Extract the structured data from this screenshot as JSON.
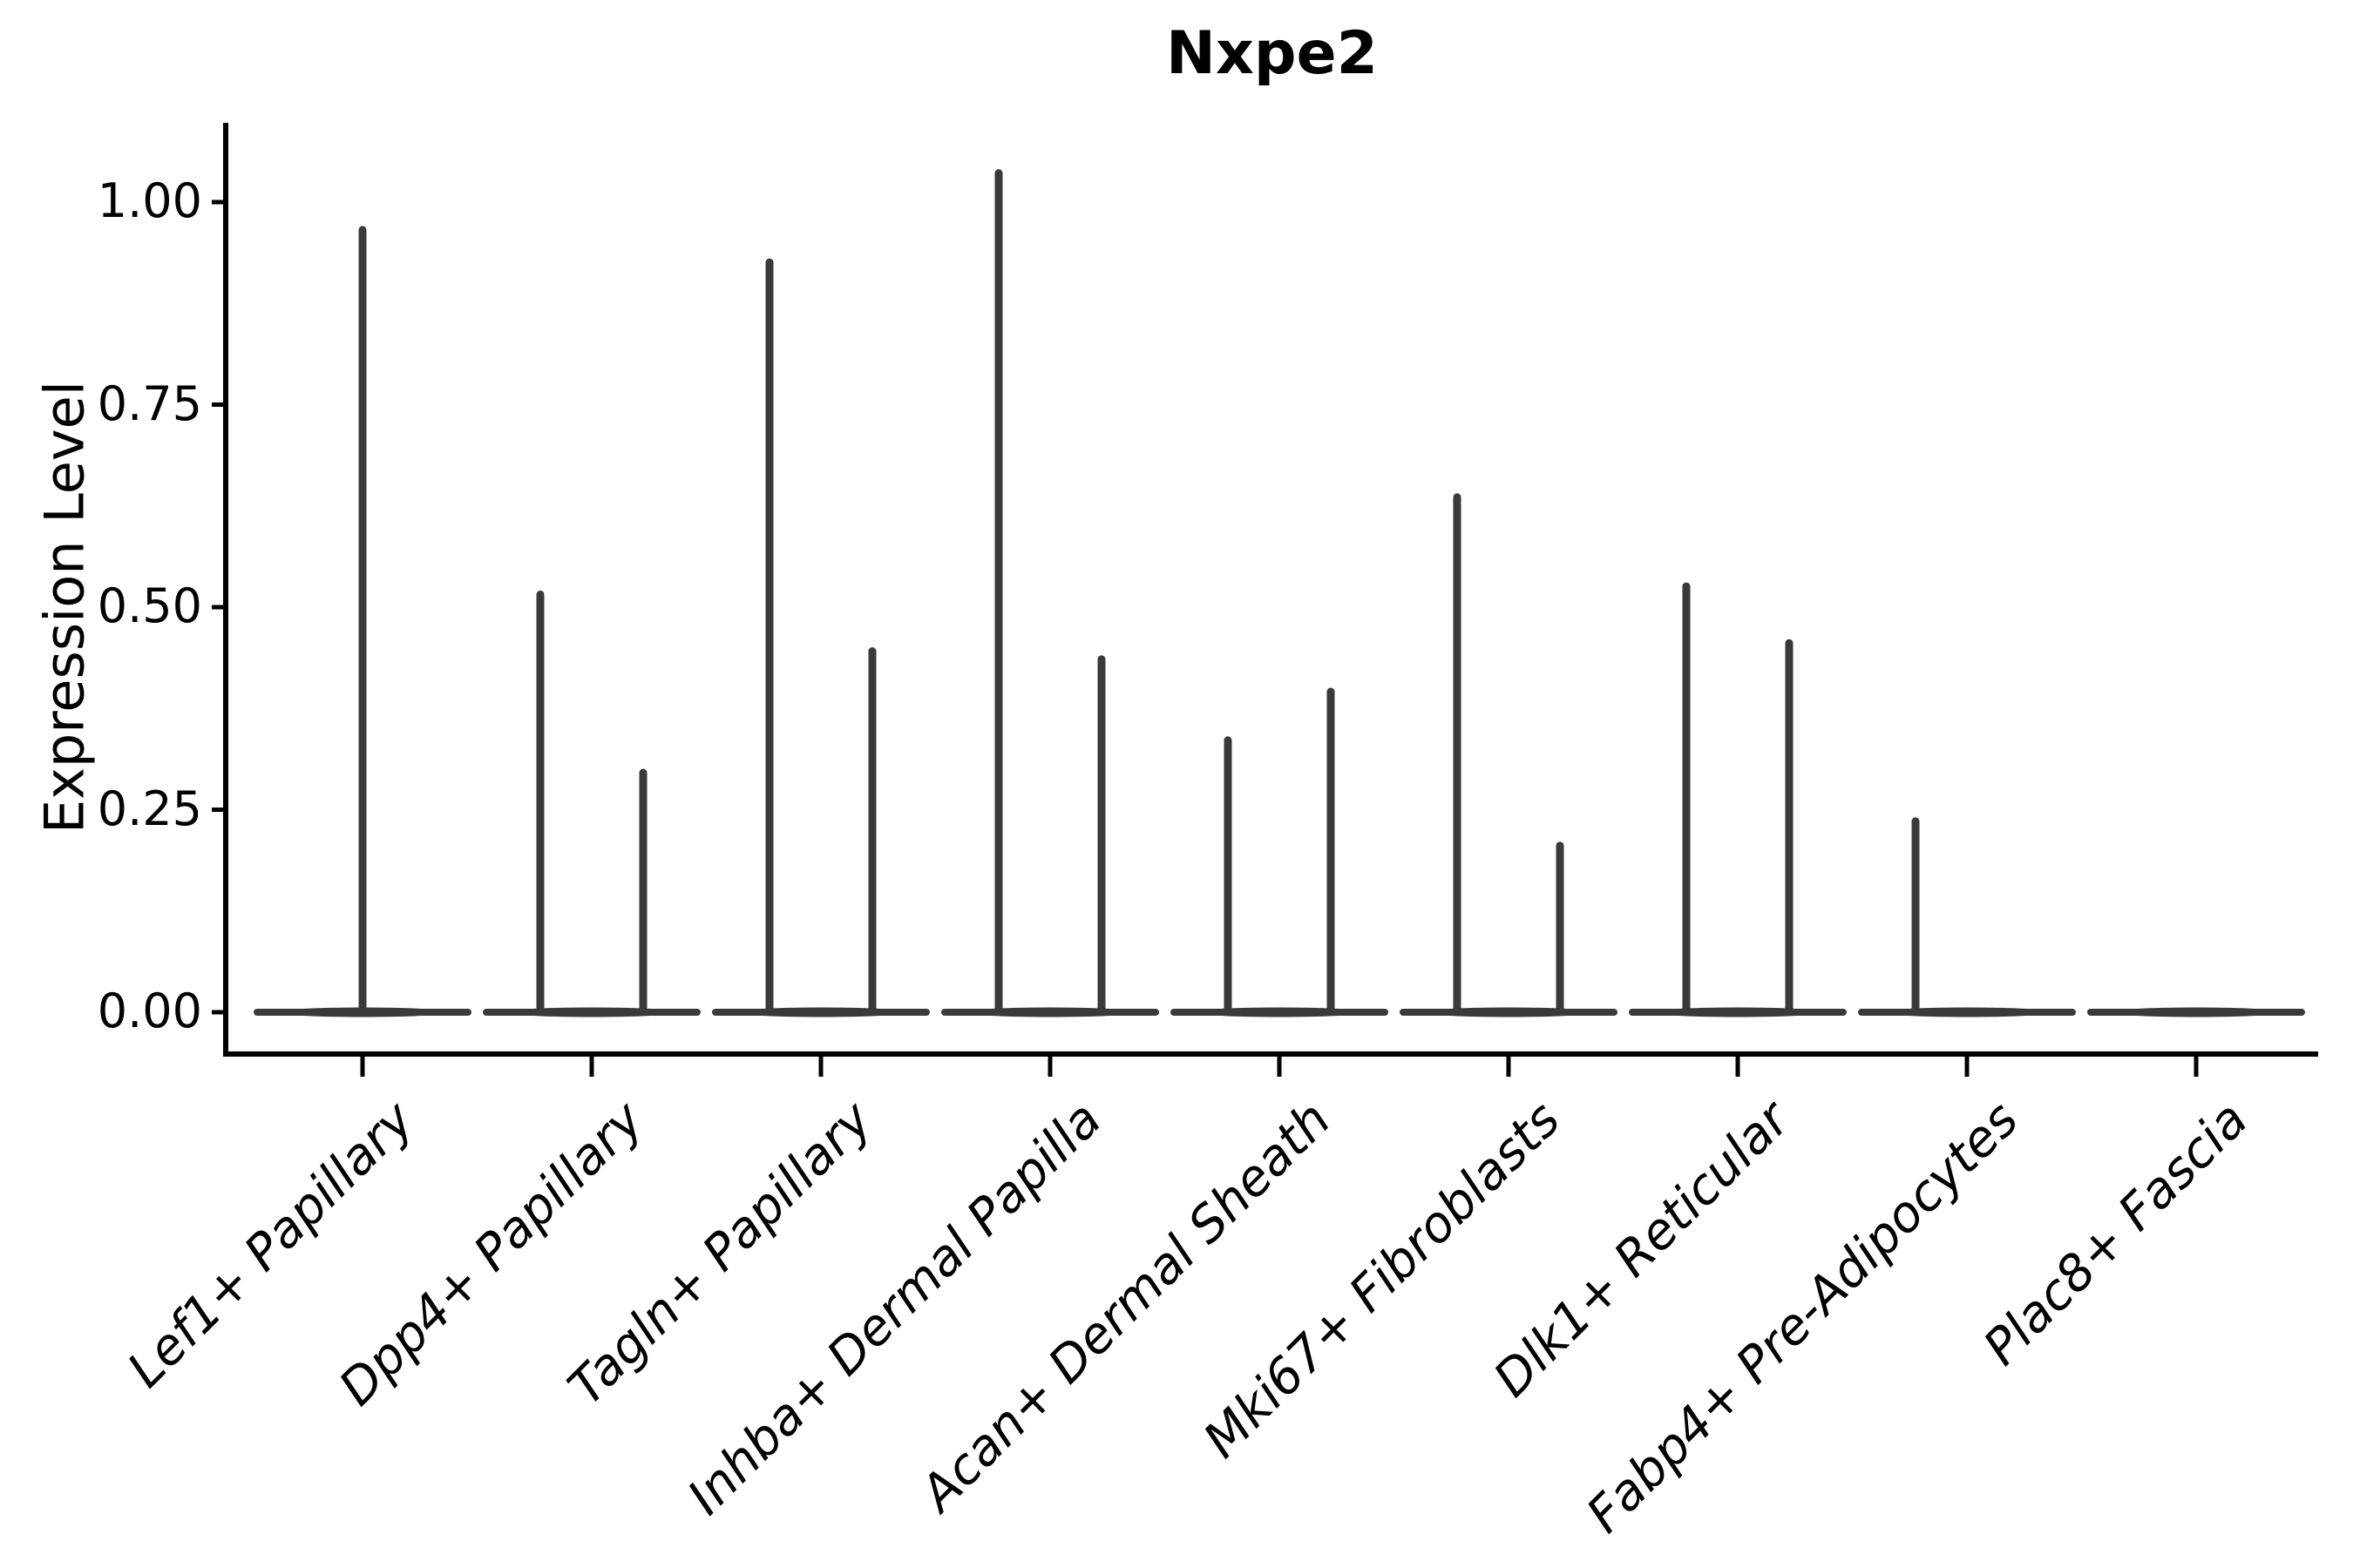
{
  "title": "Nxpe2",
  "y_axis": {
    "label": "Expression Level",
    "tick_labels": [
      "0.00",
      "0.25",
      "0.50",
      "0.75",
      "1.00"
    ],
    "tick_values": [
      0.0,
      0.25,
      0.5,
      0.75,
      1.0
    ]
  },
  "colors": {
    "violin_stroke": "#3a3a3a",
    "axis": "#000000",
    "text": "#000000",
    "background": "#ffffff"
  },
  "chart_data": {
    "type": "violin",
    "title": "Nxpe2",
    "xlabel": "",
    "ylabel": "Expression Level",
    "ylim": [
      -0.05,
      1.1
    ],
    "y_ticks": [
      0.0,
      0.25,
      0.5,
      0.75,
      1.0
    ],
    "grid": false,
    "legend": "none",
    "x_label_rotation_deg": 45,
    "description": "Violin plot of Nxpe2 expression; density is concentrated at 0 in every group so each violin renders as a flat bar at 0 with a thin spike up to the group's maximum expression value. Most categories contain a pair of side-by-side violins.",
    "categories": [
      {
        "label": "Lef1+ Papillary",
        "violins": [
          {
            "position": "center",
            "min": 0.0,
            "max": 0.97
          }
        ]
      },
      {
        "label": "Dpp4+ Papillary",
        "violins": [
          {
            "position": "left",
            "min": 0.0,
            "max": 0.52
          },
          {
            "position": "right",
            "min": 0.0,
            "max": 0.3
          }
        ]
      },
      {
        "label": "Tagln+ Papillary",
        "violins": [
          {
            "position": "left",
            "min": 0.0,
            "max": 0.93
          },
          {
            "position": "right",
            "min": 0.0,
            "max": 0.45
          }
        ]
      },
      {
        "label": "Inhba+ Dermal Papilla",
        "violins": [
          {
            "position": "left",
            "min": 0.0,
            "max": 1.04
          },
          {
            "position": "right",
            "min": 0.0,
            "max": 0.44
          }
        ]
      },
      {
        "label": "Acan+ Dermal Sheath",
        "violins": [
          {
            "position": "left",
            "min": 0.0,
            "max": 0.34
          },
          {
            "position": "right",
            "min": 0.0,
            "max": 0.4
          }
        ]
      },
      {
        "label": "Mki67+ Fibroblasts",
        "violins": [
          {
            "position": "left",
            "min": 0.0,
            "max": 0.64
          },
          {
            "position": "right",
            "min": 0.0,
            "max": 0.21
          }
        ]
      },
      {
        "label": "Dlk1+ Reticular",
        "violins": [
          {
            "position": "left",
            "min": 0.0,
            "max": 0.53
          },
          {
            "position": "right",
            "min": 0.0,
            "max": 0.46
          }
        ]
      },
      {
        "label": "Fabp4+ Pre-Adipocytes",
        "violins": [
          {
            "position": "left",
            "min": 0.0,
            "max": 0.24
          },
          {
            "position": "right",
            "min": 0.0,
            "max": 0.0
          }
        ]
      },
      {
        "label": "Plac8+ Fascia",
        "violins": [
          {
            "position": "left",
            "min": 0.0,
            "max": 0.0
          },
          {
            "position": "right",
            "min": 0.0,
            "max": 0.0
          }
        ]
      }
    ]
  }
}
